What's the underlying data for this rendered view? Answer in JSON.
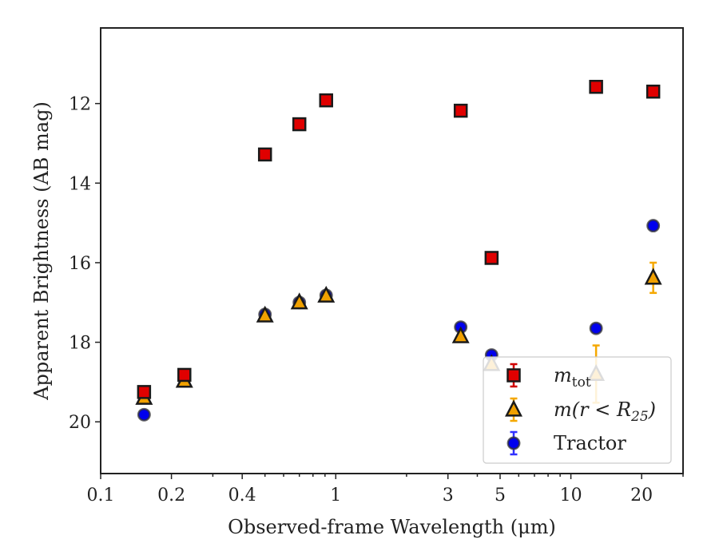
{
  "chart_data": {
    "type": "scatter",
    "xscale": "log",
    "yinverted": true,
    "xlim": [
      0.1,
      30
    ],
    "ylim": [
      21.3,
      10.1
    ],
    "xticks": [
      {
        "value": 0.1,
        "label": "0.1"
      },
      {
        "value": 0.2,
        "label": "0.2"
      },
      {
        "value": 0.4,
        "label": "0.4"
      },
      {
        "value": 1,
        "label": "1"
      },
      {
        "value": 3,
        "label": "3"
      },
      {
        "value": 5,
        "label": "5"
      },
      {
        "value": 10,
        "label": "10"
      },
      {
        "value": 20,
        "label": "20"
      }
    ],
    "yticks": [
      {
        "value": 12,
        "label": "12"
      },
      {
        "value": 14,
        "label": "14"
      },
      {
        "value": 16,
        "label": "16"
      },
      {
        "value": 18,
        "label": "18"
      },
      {
        "value": 20,
        "label": "20"
      }
    ],
    "xlabel": "Observed-frame Wavelength (μm)",
    "ylabel": "Apparent Brightness (AB mag)",
    "legend_position": "lower-right",
    "series": [
      {
        "name": "m_tot",
        "label_main": "m",
        "label_sub": "tot",
        "marker": "square",
        "fill": "#e00000",
        "errcolor": "#d00000",
        "points": [
          {
            "x": 0.153,
            "y": 19.25,
            "err": 0.08
          },
          {
            "x": 0.227,
            "y": 18.82,
            "err": 0.06
          },
          {
            "x": 0.5,
            "y": 13.28,
            "err": 0.05
          },
          {
            "x": 0.7,
            "y": 12.52,
            "err": 0.05
          },
          {
            "x": 0.91,
            "y": 11.92,
            "err": 0.05
          },
          {
            "x": 3.4,
            "y": 12.18,
            "err": 0.05
          },
          {
            "x": 4.6,
            "y": 15.88,
            "err": 0.05
          },
          {
            "x": 12.8,
            "y": 11.58,
            "err": 0.05
          },
          {
            "x": 22.4,
            "y": 11.7,
            "err": 0.05
          }
        ]
      },
      {
        "name": "m(r<R25)",
        "label_main": "m(r < R",
        "label_sub": "25",
        "label_tail": ")",
        "marker": "triangle",
        "fill": "#f0a000",
        "errcolor": "#f5a800",
        "points": [
          {
            "x": 0.153,
            "y": 19.4,
            "err": 0.08
          },
          {
            "x": 0.227,
            "y": 18.97,
            "err": 0.06
          },
          {
            "x": 0.5,
            "y": 17.33,
            "err": 0.05
          },
          {
            "x": 0.7,
            "y": 17.0,
            "err": 0.05
          },
          {
            "x": 0.91,
            "y": 16.83,
            "err": 0.05
          },
          {
            "x": 3.4,
            "y": 17.85,
            "err": 0.05
          },
          {
            "x": 4.6,
            "y": 18.55,
            "err": 0.05
          },
          {
            "x": 12.8,
            "y": 18.8,
            "err": 0.72
          },
          {
            "x": 22.4,
            "y": 16.38,
            "err": 0.38
          }
        ]
      },
      {
        "name": "Tractor",
        "label_main": "Tractor",
        "marker": "circle",
        "fill": "#0000ee",
        "errcolor": "#3030ff",
        "points": [
          {
            "x": 0.153,
            "y": 19.82,
            "err": 0.04
          },
          {
            "x": 0.227,
            "y": 18.9,
            "err": 0.04
          },
          {
            "x": 0.5,
            "y": 17.3,
            "err": 0.04
          },
          {
            "x": 0.7,
            "y": 17.0,
            "err": 0.04
          },
          {
            "x": 0.91,
            "y": 16.82,
            "err": 0.04
          },
          {
            "x": 3.4,
            "y": 17.62,
            "err": 0.04
          },
          {
            "x": 4.6,
            "y": 18.32,
            "err": 0.04
          },
          {
            "x": 12.8,
            "y": 17.65,
            "err": 0.04
          },
          {
            "x": 22.4,
            "y": 15.07,
            "err": 0.04
          }
        ]
      }
    ]
  }
}
